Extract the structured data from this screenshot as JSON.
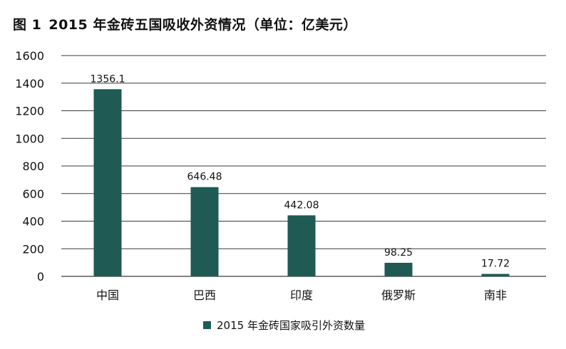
{
  "figure": {
    "number_label": "图 1",
    "title": "2015 年金砖五国吸收外资情况（单位：亿美元）"
  },
  "colors": {
    "bar": "#1f5a54",
    "grid": "#3a3a3a"
  },
  "chart_data": {
    "type": "bar",
    "title": "2015 年金砖五国吸收外资情况（单位：亿美元）",
    "categories": [
      "中国",
      "巴西",
      "印度",
      "俄罗斯",
      "南非"
    ],
    "series": [
      {
        "name": "2015 年金砖国家吸引外资数量",
        "values": [
          1356.1,
          646.48,
          442.08,
          98.25,
          17.72
        ],
        "labels": [
          "1356.1",
          "646.48",
          "442.08",
          "98.25",
          "17.72"
        ]
      }
    ],
    "y_ticks": [
      "0",
      "200",
      "400",
      "600",
      "800",
      "1000",
      "1200",
      "1400",
      "1600"
    ],
    "ylim": [
      0,
      1600
    ],
    "grid": true,
    "legend_position": "bottom-center"
  }
}
